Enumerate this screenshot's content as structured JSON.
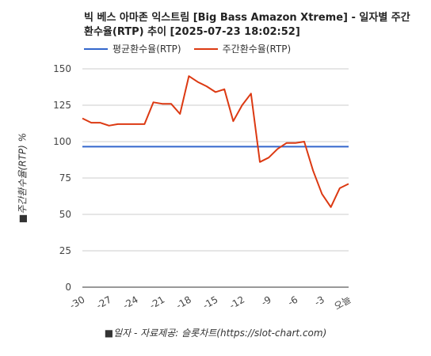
{
  "chart_data": {
    "type": "line",
    "title": "빅 베스 아마존 익스트림 [Big Bass Amazon Xtreme] - 일자별 주간 환수율(RTP) 추이 [2025-07-23 18:02:52]",
    "xlabel": "■일자 - 자료제공: 슬롯차트(https://slot-chart.com)",
    "ylabel": "■주간환수율(RTP) %",
    "ylim": [
      0,
      150
    ],
    "yticks": [
      0,
      25,
      50,
      75,
      100,
      125,
      150
    ],
    "xlim": [
      -30,
      0
    ],
    "xticks": [
      -30,
      -27,
      -24,
      -21,
      -18,
      -15,
      -12,
      -9,
      -6,
      -3,
      0
    ],
    "xtick_labels": [
      "-30",
      "-27",
      "-24",
      "-21",
      "-18",
      "-15",
      "-12",
      "-9",
      "-6",
      "-3",
      "오늘"
    ],
    "legend_position": "top-left",
    "grid": true,
    "series": [
      {
        "name": "평균환수율(RTP)",
        "color": "#3366cc",
        "x": [
          -30,
          0
        ],
        "values": [
          96.5,
          96.5
        ]
      },
      {
        "name": "주간환수율(RTP)",
        "color": "#dc3912",
        "x": [
          -30,
          -29,
          -28,
          -27,
          -26,
          -25,
          -24,
          -23,
          -22,
          -21,
          -20,
          -19,
          -18,
          -17,
          -16,
          -15,
          -14,
          -13,
          -12,
          -11,
          -10,
          -9,
          -8,
          -7,
          -6,
          -5,
          -4,
          -3,
          -2,
          -1,
          0
        ],
        "values": [
          116,
          113,
          113,
          111,
          112,
          112,
          112,
          112,
          127,
          126,
          126,
          119,
          145,
          141,
          138,
          134,
          136,
          114,
          125,
          133,
          86,
          89,
          95,
          99,
          99,
          100,
          80,
          64,
          55,
          68,
          71
        ]
      }
    ]
  }
}
